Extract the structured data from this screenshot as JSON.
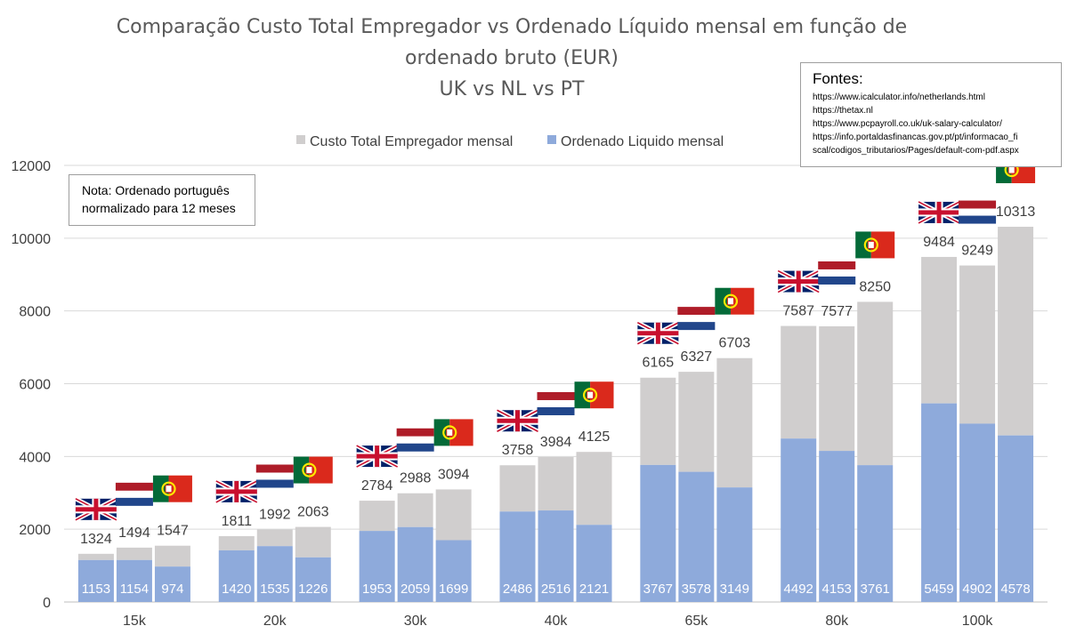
{
  "chart_data": {
    "type": "bar",
    "title": [
      "Comparação Custo Total Empregador vs Ordenado Líquido mensal em função de",
      "ordenado bruto (EUR)",
      "UK vs NL vs PT"
    ],
    "categories": [
      "15k",
      "20k",
      "30k",
      "40k",
      "65k",
      "80k",
      "100k"
    ],
    "countries": [
      "UK",
      "NL",
      "PT"
    ],
    "ylim": [
      0,
      12000
    ],
    "yticks": [
      "0",
      "2000",
      "4000",
      "6000",
      "8000",
      "10000",
      "12000"
    ],
    "grid": true,
    "legend_position": "top",
    "legend": [
      "Custo Total Empregador mensal",
      "Ordenado Liquido mensal"
    ],
    "series": [
      {
        "name": "Custo Total Empregador mensal",
        "color": "#d0cece",
        "values": [
          [
            1324,
            1494,
            1547
          ],
          [
            1811,
            1992,
            2063
          ],
          [
            2784,
            2988,
            3094
          ],
          [
            3758,
            3984,
            4125
          ],
          [
            6165,
            6327,
            6703
          ],
          [
            7587,
            7577,
            8250
          ],
          [
            9484,
            9249,
            10313
          ]
        ]
      },
      {
        "name": "Ordenado Liquido mensal",
        "color": "#8eaadb",
        "values": [
          [
            1153,
            1154,
            974
          ],
          [
            1420,
            1535,
            1226
          ],
          [
            1953,
            2059,
            1699
          ],
          [
            2486,
            2516,
            2121
          ],
          [
            3767,
            3578,
            3149
          ],
          [
            4492,
            4153,
            3761
          ],
          [
            5459,
            4902,
            4578
          ]
        ]
      }
    ],
    "note": [
      "Nota: Ordenado português",
      "normalizado para 12 meses"
    ]
  },
  "sources": {
    "title": "Fontes:",
    "links": [
      "https://www.icalculator.info/netherlands.html",
      "https://thetax.nl",
      "https://www.pcpayroll.co.uk/uk-salary-calculator/",
      "https://info.portaldasfinancas.gov.pt/pt/informacao_fi",
      "scal/codigos_tributarios/Pages/default-com-pdf.aspx"
    ]
  },
  "colors": {
    "employer_cost": "#d0cece",
    "net_salary": "#8eaadb",
    "grid": "#d9d9d9",
    "axis": "#bfbfbf"
  },
  "icons": [
    "uk-flag-icon",
    "nl-flag-icon",
    "pt-flag-icon"
  ]
}
